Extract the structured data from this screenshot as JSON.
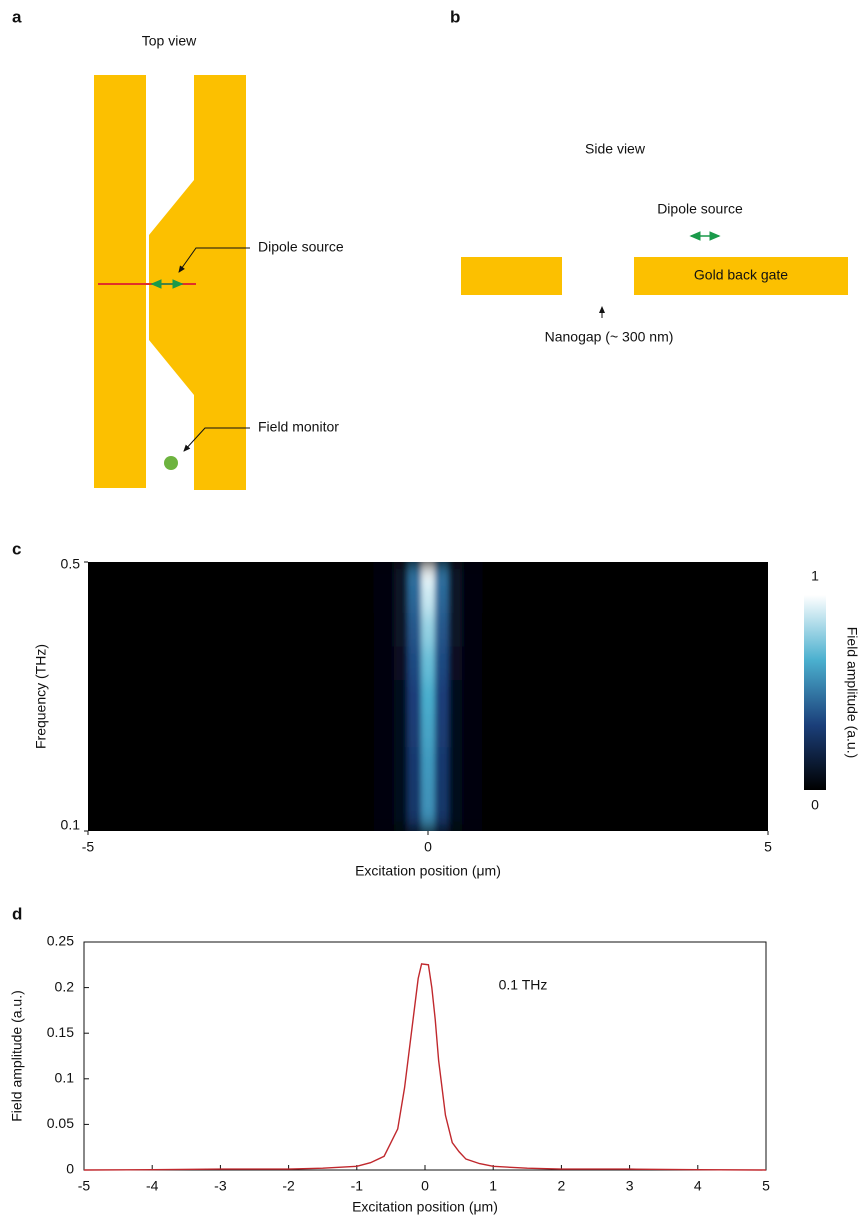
{
  "panels": {
    "a": {
      "label": "a",
      "title": "Top view",
      "dipole_label": "Dipole source",
      "monitor_label": "Field monitor"
    },
    "b": {
      "label": "b",
      "title": "Side view",
      "dipole_label": "Dipole source",
      "gate_label": "Gold back gate",
      "gap_label": "Nanogap (~ 300 nm)"
    },
    "c": {
      "label": "c"
    },
    "d": {
      "label": "d"
    }
  },
  "chart_data": [
    {
      "type": "heatmap",
      "x_label": "Excitation position (μm)",
      "y_label": "Frequency (THz)",
      "x": [
        -5,
        -2,
        -1,
        -0.6,
        -0.4,
        -0.2,
        0,
        0.2,
        0.4,
        0.6,
        1,
        2,
        5
      ],
      "y": [
        0.1,
        0.15,
        0.2,
        0.25,
        0.3,
        0.35,
        0.4,
        0.45,
        0.5
      ],
      "values": [
        [
          0,
          0,
          0.01,
          0.02,
          0.07,
          0.28,
          0.55,
          0.28,
          0.07,
          0.02,
          0.01,
          0,
          0
        ],
        [
          0,
          0,
          0.01,
          0.02,
          0.07,
          0.29,
          0.58,
          0.29,
          0.07,
          0.02,
          0.01,
          0,
          0
        ],
        [
          0,
          0,
          0.01,
          0.02,
          0.07,
          0.3,
          0.6,
          0.3,
          0.07,
          0.02,
          0.01,
          0,
          0
        ],
        [
          0,
          0,
          0.01,
          0.02,
          0.08,
          0.32,
          0.63,
          0.32,
          0.08,
          0.02,
          0.01,
          0,
          0
        ],
        [
          0,
          0,
          0.01,
          0.02,
          0.08,
          0.33,
          0.66,
          0.33,
          0.08,
          0.02,
          0.01,
          0,
          0
        ],
        [
          0,
          0,
          0.01,
          0.02,
          0.09,
          0.36,
          0.72,
          0.36,
          0.09,
          0.02,
          0.01,
          0,
          0
        ],
        [
          0,
          0,
          0.01,
          0.02,
          0.1,
          0.4,
          0.8,
          0.4,
          0.1,
          0.02,
          0.01,
          0,
          0
        ],
        [
          0,
          0,
          0.01,
          0.03,
          0.11,
          0.45,
          0.9,
          0.45,
          0.11,
          0.03,
          0.01,
          0,
          0
        ],
        [
          0,
          0,
          0.01,
          0.03,
          0.12,
          0.5,
          1,
          0.5,
          0.12,
          0.03,
          0.01,
          0,
          0
        ]
      ],
      "xlim": [
        -5,
        5
      ],
      "xticks": [
        -5,
        0,
        5
      ],
      "ylim": [
        0.1,
        0.5
      ],
      "yticks": [
        0.1,
        0.5
      ],
      "colorbar": {
        "label": "Field amplitude (a.u.)",
        "clim": [
          0,
          1
        ],
        "ticks": [
          0,
          1
        ],
        "colormap": [
          "#000000",
          "#1b3f7a",
          "#4bb0cf",
          "#ffffff"
        ]
      }
    },
    {
      "type": "line",
      "x_label": "Excitation position (μm)",
      "y_label": "Field amplitude (a.u.)",
      "annotation": "0.1 THz",
      "color": "#c0282d",
      "x": [
        -5,
        -4,
        -3,
        -2,
        -1.5,
        -1,
        -0.8,
        -0.6,
        -0.4,
        -0.3,
        -0.2,
        -0.1,
        -0.05,
        0.05,
        0.1,
        0.15,
        0.2,
        0.3,
        0.4,
        0.5,
        0.6,
        0.8,
        1,
        1.5,
        2,
        3,
        4,
        5
      ],
      "values": [
        0,
        0.0003,
        0.001,
        0.001,
        0.002,
        0.004,
        0.008,
        0.015,
        0.045,
        0.09,
        0.15,
        0.21,
        0.226,
        0.225,
        0.2,
        0.165,
        0.12,
        0.06,
        0.03,
        0.02,
        0.012,
        0.007,
        0.004,
        0.002,
        0.001,
        0.001,
        0.0003,
        0
      ],
      "xlim": [
        -5,
        5
      ],
      "xticks": [
        -5,
        -4,
        -3,
        -2,
        -1,
        0,
        1,
        2,
        3,
        4,
        5
      ],
      "ylim": [
        0,
        0.25
      ],
      "yticks": [
        0,
        0.05,
        0.1,
        0.15,
        0.2,
        0.25
      ]
    }
  ]
}
